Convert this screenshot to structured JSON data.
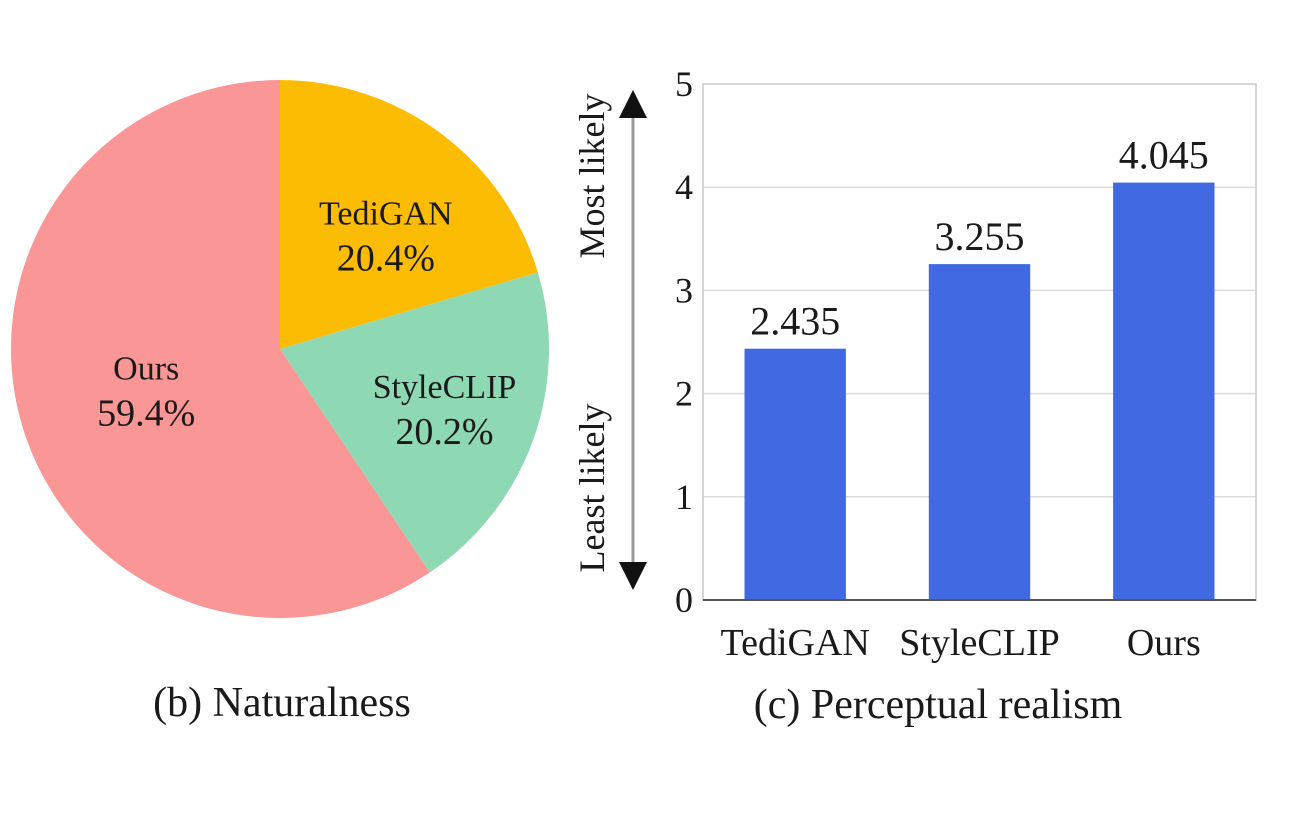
{
  "chart_data": [
    {
      "type": "pie",
      "caption": "(b) Naturalness",
      "slices": [
        {
          "label": "TediGAN",
          "value": 20.4,
          "value_label": "20.4%",
          "color": "#fcbc04"
        },
        {
          "label": "StyleCLIP",
          "value": 20.2,
          "value_label": "20.2%",
          "color": "#8fd8b4"
        },
        {
          "label": "Ours",
          "value": 59.4,
          "value_label": "59.4%",
          "color": "#fa9696"
        }
      ],
      "start": "12 o'clock",
      "direction": "clockwise"
    },
    {
      "type": "bar",
      "caption": "(c) Perceptual realism",
      "categories": [
        "TediGAN",
        "StyleCLIP",
        "Ours"
      ],
      "values": [
        2.435,
        3.255,
        4.045
      ],
      "value_labels": [
        "2.435",
        "3.255",
        "4.045"
      ],
      "ylim": [
        0,
        5
      ],
      "yticks": [
        "0",
        "1",
        "2",
        "3",
        "4",
        "5"
      ],
      "grid": true,
      "bar_color": "#4169e1",
      "y_arrow_labels": {
        "top": "Most likely",
        "bottom": "Least likely"
      }
    }
  ]
}
